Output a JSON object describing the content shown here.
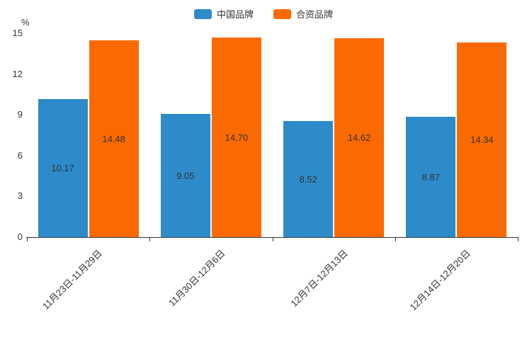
{
  "chart_data": {
    "type": "bar",
    "title": "",
    "unit_label": "%",
    "categories": [
      "11月23日-11月29日",
      "11月30日-12月6日",
      "12月7日-12月13日",
      "12月14日-12月20日"
    ],
    "series": [
      {
        "name": "中国品牌",
        "color": "#2d8bc9",
        "values": [
          10.17,
          9.05,
          8.52,
          8.87
        ]
      },
      {
        "name": "合资品牌",
        "color": "#fb6a02",
        "values": [
          14.48,
          14.7,
          14.62,
          14.34
        ]
      }
    ],
    "value_label_decimals": 2,
    "ylim": [
      0,
      15
    ],
    "yticks": [
      0,
      3,
      6,
      9,
      12,
      15
    ],
    "legend_position": "top-center",
    "grid": false,
    "axis_color": "#333333"
  }
}
